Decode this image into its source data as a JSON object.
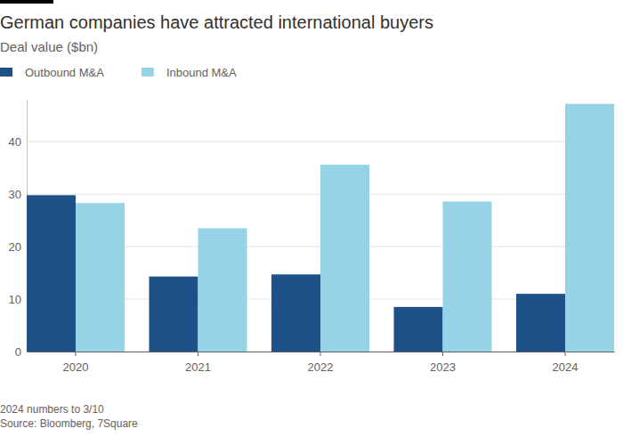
{
  "chart_data": {
    "type": "bar",
    "title": "German companies have attracted international buyers",
    "subtitle": "Deal value ($bn)",
    "categories": [
      "2020",
      "2021",
      "2022",
      "2023",
      "2024"
    ],
    "series": [
      {
        "name": "Outbound M&A",
        "color": "#1f5189",
        "values": [
          29.8,
          14.3,
          14.7,
          8.5,
          11.0
        ]
      },
      {
        "name": "Inbound M&A",
        "color": "#96d3e6",
        "values": [
          28.3,
          23.5,
          35.6,
          28.6,
          47.2
        ]
      }
    ],
    "ylim": [
      0,
      48
    ],
    "yticks": [
      0,
      10,
      20,
      30,
      40
    ],
    "grid": true,
    "notes": [
      "2024 numbers to 3/10"
    ],
    "source": "Source: Bloomberg, 7Square"
  }
}
